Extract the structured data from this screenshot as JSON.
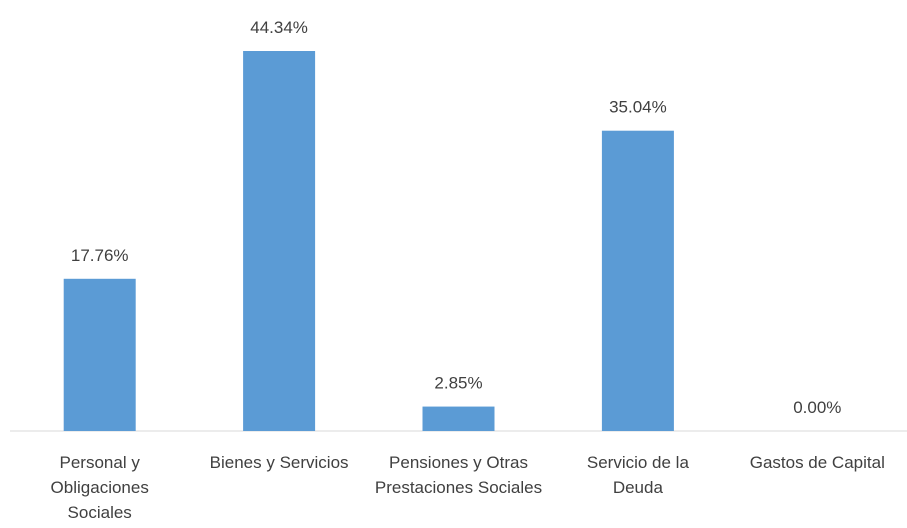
{
  "chart_data": {
    "type": "bar",
    "categories": [
      "Personal y Obligaciones Sociales",
      "Bienes y Servicios",
      "Pensiones y Otras Prestaciones Sociales",
      "Servicio de la Deuda",
      "Gastos de Capital"
    ],
    "values": [
      17.76,
      44.34,
      2.85,
      35.04,
      0
    ],
    "value_labels": [
      "17.76%",
      "44.34%",
      "2.85%",
      "35.04%",
      "0.00%"
    ],
    "color": "#5b9bd5"
  }
}
